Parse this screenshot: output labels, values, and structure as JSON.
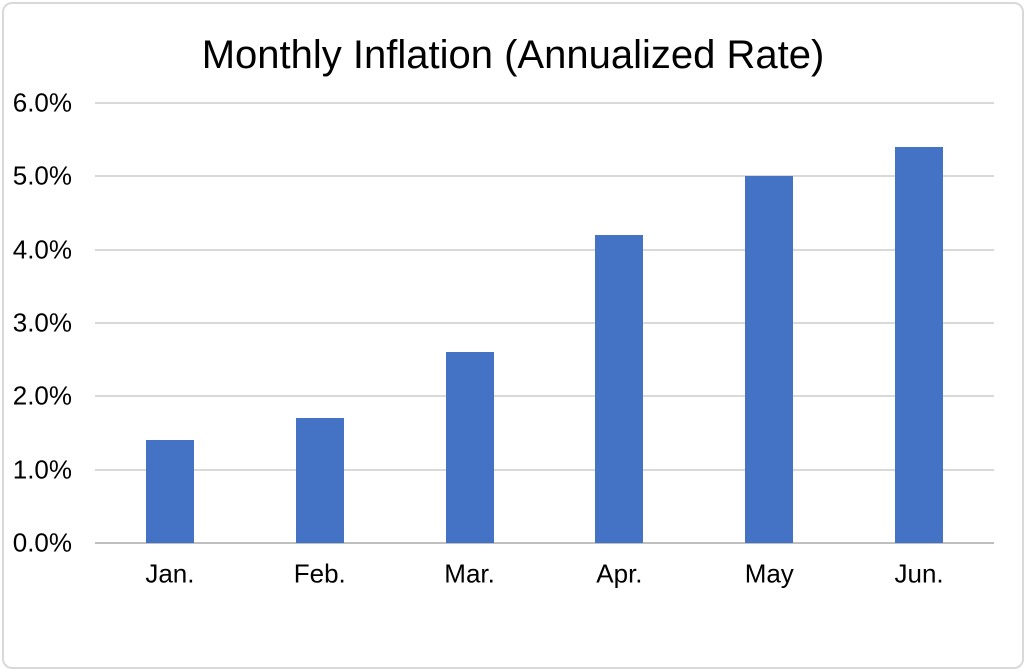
{
  "chart_data": {
    "type": "bar",
    "title": "Monthly Inflation (Annualized Rate)",
    "categories": [
      "Jan.",
      "Feb.",
      "Mar.",
      "Apr.",
      "May",
      "Jun."
    ],
    "values": [
      1.4,
      1.7,
      2.6,
      4.2,
      5.0,
      5.4
    ],
    "unit": "percent",
    "xlabel": "",
    "ylabel": "",
    "ylim": [
      0,
      6
    ],
    "ytick_step": 1,
    "ytick_labels": [
      "0.0%",
      "1.0%",
      "2.0%",
      "3.0%",
      "4.0%",
      "5.0%",
      "6.0%"
    ],
    "grid": true,
    "legend": "none",
    "colors": {
      "bar": "#4472C4",
      "gridline": "#D9D9D9",
      "axis_line": "#BFBFBF",
      "text": "#000000",
      "frame_border": "#D9D9D9",
      "background": "#FFFFFF"
    }
  }
}
